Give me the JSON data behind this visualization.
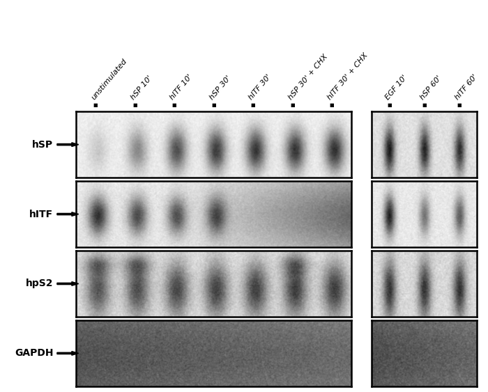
{
  "col_labels": [
    "unstimulated",
    "hSP 10'",
    "hITF 10'",
    "hSP 30'",
    "hITF 30'",
    "hSP 30' + CHX",
    "hITF 30' + CHX",
    "EGF 10'",
    "hSP 60'",
    "hITF 60'"
  ],
  "row_labels": [
    "hSP",
    "hITF",
    "hpS2",
    "GAPDH"
  ],
  "group1_cols": [
    0,
    1,
    2,
    3,
    4,
    5,
    6
  ],
  "group2_cols": [
    7,
    8,
    9
  ],
  "bg_color": "#ffffff",
  "panel_border_color": "#000000",
  "label_font_size": 10,
  "col_label_font_size": 8,
  "arrow_label_fontweight": "bold"
}
